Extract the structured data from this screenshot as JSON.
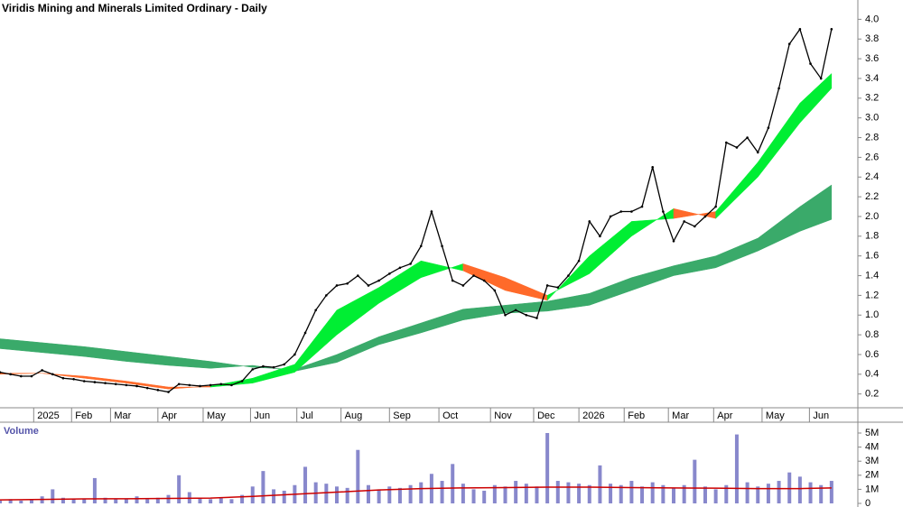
{
  "chart_data": [
    {
      "type": "band-line",
      "title": "Viridis Mining and Minerals Limited Ordinary - Daily",
      "xlim": [
        0,
        81.5
      ],
      "xticks": [
        {
          "value": 3.2,
          "label": "2025"
        },
        {
          "value": 6.8,
          "label": "Feb"
        },
        {
          "value": 10.5,
          "label": "Mar"
        },
        {
          "value": 15,
          "label": "Apr"
        },
        {
          "value": 19.3,
          "label": "May"
        },
        {
          "value": 23.8,
          "label": "Jun"
        },
        {
          "value": 28.2,
          "label": "Jul"
        },
        {
          "value": 32.4,
          "label": "Aug"
        },
        {
          "value": 37,
          "label": "Sep"
        },
        {
          "value": 41.7,
          "label": "Oct"
        },
        {
          "value": 46.6,
          "label": "Nov"
        },
        {
          "value": 50.7,
          "label": "Dec"
        },
        {
          "value": 55,
          "label": "2026"
        },
        {
          "value": 59.3,
          "label": "Feb"
        },
        {
          "value": 63.5,
          "label": "Mar"
        },
        {
          "value": 67.8,
          "label": "Apr"
        },
        {
          "value": 72.4,
          "label": "May"
        },
        {
          "value": 76.9,
          "label": "Jun"
        }
      ],
      "ylim": [
        0.06,
        4.15
      ],
      "yticks": [
        0.2,
        0.4,
        0.6,
        0.8,
        {
          "value": 1,
          "label": "1.0"
        },
        1.2,
        1.4,
        1.6,
        1.8,
        {
          "value": 2,
          "label": "2.0"
        },
        2.2,
        2.4,
        2.6,
        2.8,
        {
          "value": 3,
          "label": "3.0"
        },
        3.2,
        3.4,
        3.6,
        3.8,
        {
          "value": 4,
          "label": "4.0"
        }
      ],
      "x": [
        0,
        1,
        2,
        3,
        4,
        5,
        6,
        7,
        8,
        9,
        10,
        11,
        12,
        13,
        14,
        15,
        16,
        17,
        18,
        19,
        20,
        21,
        22,
        23,
        24,
        25,
        26,
        27,
        28,
        29,
        30,
        31,
        32,
        33,
        34,
        35,
        36,
        37,
        38,
        39,
        40,
        41,
        42,
        43,
        44,
        45,
        46,
        47,
        48,
        49,
        50,
        51,
        52,
        53,
        54,
        55,
        56,
        57,
        58,
        59,
        60,
        61,
        62,
        63,
        64,
        65,
        66,
        67,
        68,
        69,
        70,
        71,
        72,
        73,
        74,
        75,
        76,
        77,
        78,
        79
      ],
      "values": [
        0.42,
        0.4,
        0.38,
        0.38,
        0.44,
        0.4,
        0.36,
        0.35,
        0.33,
        0.32,
        0.31,
        0.3,
        0.29,
        0.28,
        0.26,
        0.24,
        0.22,
        0.3,
        0.29,
        0.28,
        0.29,
        0.3,
        0.29,
        0.33,
        0.45,
        0.48,
        0.47,
        0.5,
        0.6,
        0.82,
        1.05,
        1.2,
        1.3,
        1.32,
        1.4,
        1.3,
        1.35,
        1.42,
        1.48,
        1.52,
        1.7,
        2.05,
        1.7,
        1.35,
        1.3,
        1.4,
        1.35,
        1.25,
        1.0,
        1.05,
        1.0,
        0.97,
        1.3,
        1.28,
        1.4,
        1.55,
        1.95,
        1.8,
        2.0,
        2.05,
        2.05,
        2.1,
        2.5,
        2.05,
        1.75,
        1.95,
        1.9,
        2.0,
        2.1,
        2.75,
        2.7,
        2.8,
        2.65,
        2.9,
        3.3,
        3.75,
        3.9,
        3.55,
        3.4,
        3.9
      ],
      "color": "#000000",
      "bands": [
        {
          "x": [
            0,
            4,
            8,
            12,
            16,
            20,
            24,
            28,
            32,
            36,
            40,
            44,
            48,
            52,
            56,
            60,
            64,
            68,
            72,
            76,
            79
          ],
          "fast": [
            0.76,
            0.72,
            0.68,
            0.63,
            0.58,
            0.53,
            0.47,
            0.45,
            0.6,
            0.78,
            0.92,
            1.06,
            1.1,
            1.14,
            1.22,
            1.38,
            1.5,
            1.6,
            1.78,
            2.1,
            2.32
          ],
          "slow": [
            0.66,
            0.62,
            0.58,
            0.53,
            0.49,
            0.46,
            0.49,
            0.43,
            0.52,
            0.7,
            0.82,
            0.95,
            1.02,
            1.04,
            1.1,
            1.25,
            1.4,
            1.48,
            1.65,
            1.85,
            1.97
          ],
          "up_color": "#3aaa6a",
          "down_color": "#f08080"
        },
        {
          "x": [
            0,
            4,
            8,
            12,
            16,
            20,
            24,
            28,
            32,
            36,
            40,
            44,
            48,
            52,
            56,
            60,
            64,
            68,
            72,
            76,
            79
          ],
          "fast": [
            0.4,
            0.41,
            0.36,
            0.31,
            0.25,
            0.28,
            0.36,
            0.5,
            1.05,
            1.28,
            1.55,
            1.45,
            1.25,
            1.15,
            1.6,
            1.95,
            1.98,
            2.05,
            2.55,
            3.15,
            3.45
          ],
          "slow": [
            0.41,
            0.41,
            0.38,
            0.33,
            0.27,
            0.27,
            0.31,
            0.42,
            0.8,
            1.12,
            1.38,
            1.52,
            1.38,
            1.2,
            1.42,
            1.8,
            2.08,
            1.98,
            2.4,
            2.95,
            3.3
          ],
          "up_color": "#00ee33",
          "down_color": "#ff6a2a"
        }
      ]
    },
    {
      "type": "bar",
      "title": "Volume",
      "xlim": [
        0,
        81.5
      ],
      "ylim": [
        0,
        5.77
      ],
      "yticks": [
        0,
        {
          "value": 1,
          "label": "1M"
        },
        {
          "value": 2,
          "label": "2M"
        },
        {
          "value": 3,
          "label": "3M"
        },
        {
          "value": 4,
          "label": "4M"
        },
        {
          "value": 5,
          "label": "5M"
        }
      ],
      "x": [
        0,
        1,
        2,
        3,
        4,
        5,
        6,
        7,
        8,
        9,
        10,
        11,
        12,
        13,
        14,
        15,
        16,
        17,
        18,
        19,
        20,
        21,
        22,
        23,
        24,
        25,
        26,
        27,
        28,
        29,
        30,
        31,
        32,
        33,
        34,
        35,
        36,
        37,
        38,
        39,
        40,
        41,
        42,
        43,
        44,
        45,
        46,
        47,
        48,
        49,
        50,
        51,
        52,
        53,
        54,
        55,
        56,
        57,
        58,
        59,
        60,
        61,
        62,
        63,
        64,
        65,
        66,
        67,
        68,
        69,
        70,
        71,
        72,
        73,
        74,
        75,
        76,
        77,
        78,
        79
      ],
      "values": [
        0.2,
        0.3,
        0.2,
        0.3,
        0.5,
        1.0,
        0.4,
        0.3,
        0.3,
        1.8,
        0.4,
        0.3,
        0.3,
        0.5,
        0.3,
        0.4,
        0.6,
        2.0,
        0.8,
        0.4,
        0.3,
        0.4,
        0.3,
        0.6,
        1.2,
        2.3,
        1.0,
        0.9,
        1.3,
        2.6,
        1.5,
        1.4,
        1.2,
        1.1,
        3.8,
        1.3,
        1.0,
        1.2,
        1.1,
        1.3,
        1.5,
        2.1,
        1.6,
        2.8,
        1.4,
        1.0,
        0.9,
        1.3,
        1.2,
        1.6,
        1.4,
        1.2,
        5.0,
        1.6,
        1.5,
        1.4,
        1.3,
        2.7,
        1.4,
        1.3,
        1.6,
        1.2,
        1.5,
        1.3,
        1.1,
        1.3,
        3.1,
        1.2,
        1.0,
        1.3,
        4.9,
        1.5,
        1.2,
        1.4,
        1.6,
        2.2,
        1.9,
        1.5,
        1.3,
        1.6
      ],
      "color": "#8888cc",
      "average": {
        "x": [
          0,
          4,
          8,
          12,
          16,
          20,
          24,
          28,
          32,
          36,
          40,
          44,
          48,
          52,
          56,
          60,
          64,
          68,
          72,
          76,
          79
        ],
        "values": [
          0.25,
          0.28,
          0.32,
          0.33,
          0.35,
          0.38,
          0.5,
          0.65,
          0.8,
          0.95,
          1.05,
          1.1,
          1.12,
          1.15,
          1.15,
          1.12,
          1.1,
          1.08,
          1.05,
          1.05,
          1.1
        ],
        "color": "#cc0000"
      }
    }
  ]
}
